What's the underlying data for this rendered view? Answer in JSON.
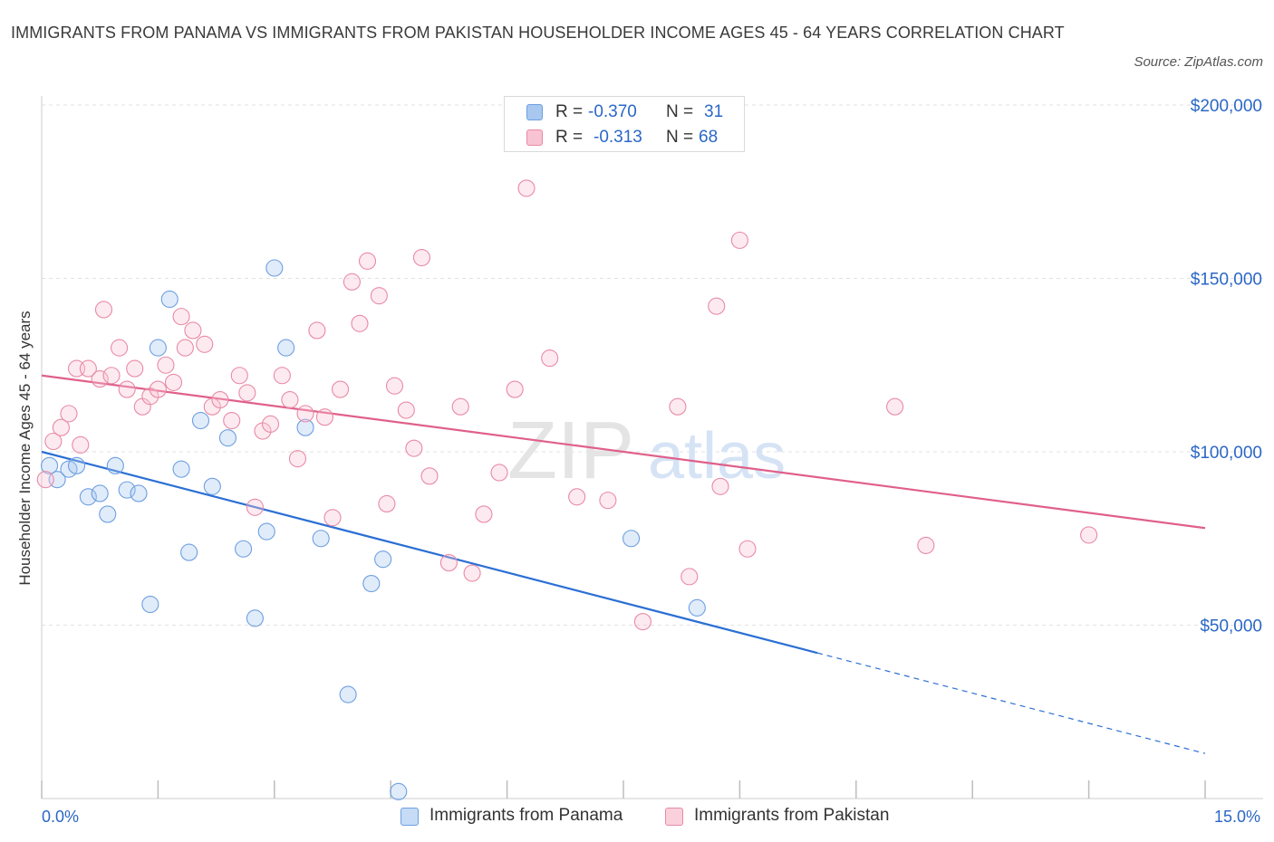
{
  "title": "IMMIGRANTS FROM PANAMA VS IMMIGRANTS FROM PAKISTAN HOUSEHOLDER INCOME AGES 45 - 64 YEARS CORRELATION CHART",
  "source": "Source: ZipAtlas.com",
  "watermark": {
    "zip": "ZIP",
    "atlas": "atlas"
  },
  "legend_top": {
    "rows": [
      {
        "r_label": "R =",
        "r_value": "-0.370",
        "n_label": "N =",
        "n_value": "31",
        "color": "#a8c8f0",
        "border": "#6d9fe0"
      },
      {
        "r_label": "R =",
        "r_value": "-0.313",
        "n_label": "N =",
        "n_value": "68",
        "color": "#f8c3d3",
        "border": "#e88aa6"
      }
    ]
  },
  "legend_bottom": [
    {
      "label": "Immigrants from Panama",
      "color": "#c5dbf6",
      "border": "#6d9fe0"
    },
    {
      "label": "Immigrants from Pakistan",
      "color": "#f9d0dc",
      "border": "#e88aa6"
    }
  ],
  "chart_data": {
    "type": "scatter",
    "title": "IMMIGRANTS FROM PANAMA VS IMMIGRANTS FROM PAKISTAN HOUSEHOLDER INCOME AGES 45 - 64 YEARS CORRELATION CHART",
    "xlabel": "",
    "ylabel": "Householder Income Ages 45 - 64 years",
    "xlim": [
      0,
      15
    ],
    "ylim": [
      0,
      200000
    ],
    "x_tick_labels": [
      "0.0%",
      "15.0%"
    ],
    "y_ticks": [
      50000,
      100000,
      150000,
      200000
    ],
    "y_tick_labels": [
      "$50,000",
      "$100,000",
      "$150,000",
      "$200,000"
    ],
    "grid": true,
    "legend_position": "top-center",
    "series": [
      {
        "name": "Immigrants from Panama",
        "color": "#6d9fe0",
        "trend": {
          "x_start": 0,
          "y_start": 100000,
          "x_end": 10,
          "y_end": 42000,
          "dashed_to_x": 15,
          "dashed_to_y": 13000,
          "color": "#2b6fd4"
        },
        "points": [
          [
            0.1,
            96000
          ],
          [
            0.2,
            92000
          ],
          [
            0.35,
            95000
          ],
          [
            0.45,
            96000
          ],
          [
            0.6,
            87000
          ],
          [
            0.75,
            88000
          ],
          [
            0.85,
            82000
          ],
          [
            0.95,
            96000
          ],
          [
            1.1,
            89000
          ],
          [
            1.25,
            88000
          ],
          [
            1.4,
            56000
          ],
          [
            1.5,
            130000
          ],
          [
            1.65,
            144000
          ],
          [
            1.8,
            95000
          ],
          [
            1.9,
            71000
          ],
          [
            2.05,
            109000
          ],
          [
            2.2,
            90000
          ],
          [
            2.4,
            104000
          ],
          [
            2.6,
            72000
          ],
          [
            2.75,
            52000
          ],
          [
            2.9,
            77000
          ],
          [
            3.0,
            153000
          ],
          [
            3.15,
            130000
          ],
          [
            3.4,
            107000
          ],
          [
            3.6,
            75000
          ],
          [
            3.95,
            30000
          ],
          [
            4.25,
            62000
          ],
          [
            4.4,
            69000
          ],
          [
            4.6,
            2000
          ],
          [
            7.6,
            75000
          ],
          [
            8.45,
            55000
          ]
        ]
      },
      {
        "name": "Immigrants from Pakistan",
        "color": "#e88aa6",
        "trend": {
          "x_start": 0,
          "y_start": 122000,
          "x_end": 15,
          "y_end": 78000,
          "color": "#e0608a"
        },
        "points": [
          [
            0.05,
            92000
          ],
          [
            0.15,
            103000
          ],
          [
            0.25,
            107000
          ],
          [
            0.35,
            111000
          ],
          [
            0.45,
            124000
          ],
          [
            0.5,
            102000
          ],
          [
            0.6,
            124000
          ],
          [
            0.75,
            121000
          ],
          [
            0.8,
            141000
          ],
          [
            0.9,
            122000
          ],
          [
            1.0,
            130000
          ],
          [
            1.1,
            118000
          ],
          [
            1.2,
            124000
          ],
          [
            1.3,
            113000
          ],
          [
            1.4,
            116000
          ],
          [
            1.5,
            118000
          ],
          [
            1.6,
            125000
          ],
          [
            1.7,
            120000
          ],
          [
            1.8,
            139000
          ],
          [
            1.85,
            130000
          ],
          [
            1.95,
            135000
          ],
          [
            2.1,
            131000
          ],
          [
            2.2,
            113000
          ],
          [
            2.3,
            115000
          ],
          [
            2.45,
            109000
          ],
          [
            2.55,
            122000
          ],
          [
            2.65,
            117000
          ],
          [
            2.75,
            84000
          ],
          [
            2.85,
            106000
          ],
          [
            2.95,
            108000
          ],
          [
            3.1,
            122000
          ],
          [
            3.2,
            115000
          ],
          [
            3.3,
            98000
          ],
          [
            3.4,
            111000
          ],
          [
            3.55,
            135000
          ],
          [
            3.65,
            110000
          ],
          [
            3.75,
            81000
          ],
          [
            3.85,
            118000
          ],
          [
            4.0,
            149000
          ],
          [
            4.1,
            137000
          ],
          [
            4.2,
            155000
          ],
          [
            4.35,
            145000
          ],
          [
            4.45,
            85000
          ],
          [
            4.55,
            119000
          ],
          [
            4.7,
            112000
          ],
          [
            4.8,
            101000
          ],
          [
            4.9,
            156000
          ],
          [
            5.0,
            93000
          ],
          [
            5.25,
            68000
          ],
          [
            5.4,
            113000
          ],
          [
            5.55,
            65000
          ],
          [
            5.7,
            82000
          ],
          [
            5.9,
            94000
          ],
          [
            6.1,
            118000
          ],
          [
            6.25,
            176000
          ],
          [
            6.55,
            127000
          ],
          [
            6.9,
            87000
          ],
          [
            7.3,
            86000
          ],
          [
            7.75,
            51000
          ],
          [
            8.2,
            113000
          ],
          [
            8.35,
            64000
          ],
          [
            8.7,
            142000
          ],
          [
            8.75,
            90000
          ],
          [
            9.0,
            161000
          ],
          [
            9.1,
            72000
          ],
          [
            11.0,
            113000
          ],
          [
            11.4,
            73000
          ],
          [
            13.5,
            76000
          ]
        ]
      }
    ]
  }
}
